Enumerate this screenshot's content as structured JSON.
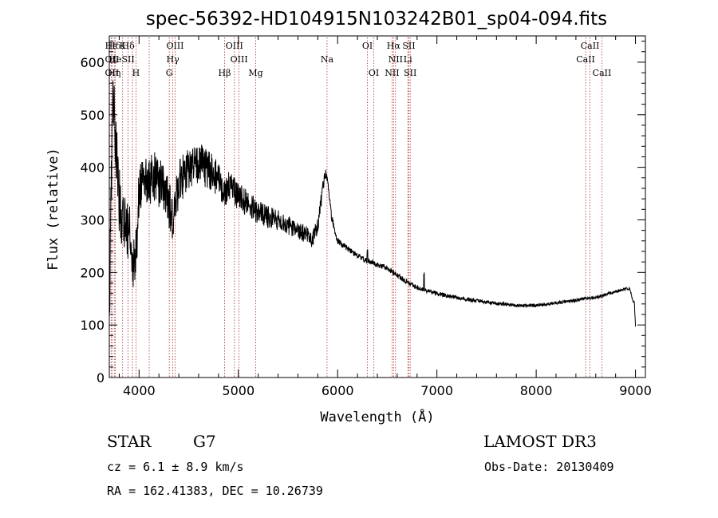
{
  "chart_data": {
    "type": "line",
    "title": "spec-56392-HD104915N103242B01_sp04-094.fits",
    "xlabel": "Wavelength (Å)",
    "ylabel": "Flux (relative)",
    "xlim": [
      3700,
      9100
    ],
    "ylim": [
      0,
      650
    ],
    "xticks": [
      4000,
      5000,
      6000,
      7000,
      8000,
      9000
    ],
    "yticks": [
      0,
      100,
      200,
      300,
      400,
      500,
      600
    ],
    "anchors": [
      [
        3700,
        120
      ],
      [
        3720,
        360
      ],
      [
        3740,
        540
      ],
      [
        3760,
        470
      ],
      [
        3780,
        410
      ],
      [
        3800,
        340
      ],
      [
        3820,
        300
      ],
      [
        3840,
        320
      ],
      [
        3860,
        290
      ],
      [
        3880,
        270
      ],
      [
        3900,
        300
      ],
      [
        3920,
        260
      ],
      [
        3940,
        220
      ],
      [
        3960,
        210
      ],
      [
        3980,
        270
      ],
      [
        4000,
        360
      ],
      [
        4050,
        380
      ],
      [
        4100,
        370
      ],
      [
        4150,
        385
      ],
      [
        4200,
        370
      ],
      [
        4250,
        360
      ],
      [
        4300,
        330
      ],
      [
        4340,
        300
      ],
      [
        4400,
        370
      ],
      [
        4450,
        385
      ],
      [
        4500,
        395
      ],
      [
        4550,
        405
      ],
      [
        4600,
        410
      ],
      [
        4700,
        395
      ],
      [
        4800,
        380
      ],
      [
        4860,
        355
      ],
      [
        4900,
        365
      ],
      [
        5000,
        345
      ],
      [
        5100,
        330
      ],
      [
        5200,
        315
      ],
      [
        5300,
        305
      ],
      [
        5400,
        300
      ],
      [
        5500,
        290
      ],
      [
        5600,
        280
      ],
      [
        5700,
        270
      ],
      [
        5750,
        262
      ],
      [
        5800,
        290
      ],
      [
        5850,
        360
      ],
      [
        5880,
        390
      ],
      [
        5900,
        370
      ],
      [
        5940,
        305
      ],
      [
        6000,
        260
      ],
      [
        6100,
        245
      ],
      [
        6200,
        232
      ],
      [
        6300,
        222
      ],
      [
        6400,
        215
      ],
      [
        6500,
        208
      ],
      [
        6600,
        195
      ],
      [
        6700,
        182
      ],
      [
        6800,
        172
      ],
      [
        6900,
        165
      ],
      [
        7000,
        160
      ],
      [
        7200,
        152
      ],
      [
        7400,
        146
      ],
      [
        7600,
        141
      ],
      [
        7800,
        137
      ],
      [
        8000,
        137
      ],
      [
        8200,
        142
      ],
      [
        8400,
        147
      ],
      [
        8500,
        150
      ],
      [
        8600,
        152
      ],
      [
        8700,
        158
      ],
      [
        8800,
        163
      ],
      [
        8900,
        168
      ],
      [
        8940,
        170
      ],
      [
        8970,
        150
      ],
      [
        8990,
        140
      ],
      [
        9000,
        100
      ]
    ],
    "noise": [
      [
        3700,
        70
      ],
      [
        4000,
        50
      ],
      [
        4300,
        45
      ],
      [
        4700,
        38
      ],
      [
        5000,
        26
      ],
      [
        5500,
        18
      ],
      [
        5800,
        16
      ],
      [
        6000,
        6
      ],
      [
        6500,
        5
      ],
      [
        7000,
        4
      ],
      [
        8000,
        3
      ],
      [
        9000,
        3
      ]
    ],
    "spikes": [
      {
        "x": 6300,
        "dy": 20
      },
      {
        "x": 6870,
        "dy": 30
      }
    ],
    "lines": [
      {
        "name": "Hε",
        "wave": 3718,
        "row": 0
      },
      {
        "name": "Hδ",
        "wave": 3750,
        "row": 0
      },
      {
        "name": "K",
        "wave": 3834,
        "row": 0
      },
      {
        "name": "Hδ",
        "wave": 3890,
        "row": 0
      },
      {
        "name": "OIII",
        "wave": 4363,
        "row": 0
      },
      {
        "name": "OIII",
        "wave": 4960,
        "row": 0
      },
      {
        "name": "OI",
        "wave": 6300,
        "row": 0
      },
      {
        "name": "Hα",
        "wave": 6563,
        "row": 0
      },
      {
        "name": "SII",
        "wave": 6717,
        "row": 0
      },
      {
        "name": "CaII",
        "wave": 8542,
        "row": 0
      },
      {
        "name": "OII",
        "wave": 3727,
        "row": 1
      },
      {
        "name": "He",
        "wave": 3760,
        "row": 1
      },
      {
        "name": "SII",
        "wave": 3890,
        "row": 1
      },
      {
        "name": "Hγ",
        "wave": 4340,
        "row": 1
      },
      {
        "name": "OIII",
        "wave": 5007,
        "row": 1
      },
      {
        "name": "Na",
        "wave": 5893,
        "row": 1
      },
      {
        "name": "NII",
        "wave": 6583,
        "row": 1
      },
      {
        "name": "Li",
        "wave": 6707,
        "row": 1
      },
      {
        "name": "CaII",
        "wave": 8498,
        "row": 1
      },
      {
        "name": "OII",
        "wave": 3727,
        "row": 2
      },
      {
        "name": "Hη",
        "wave": 3750,
        "row": 2
      },
      {
        "name": "H",
        "wave": 3969,
        "row": 2
      },
      {
        "name": "G",
        "wave": 4304,
        "row": 2
      },
      {
        "name": "Hβ",
        "wave": 4861,
        "row": 2
      },
      {
        "name": "Mg",
        "wave": 5175,
        "row": 2
      },
      {
        "name": "OI",
        "wave": 6364,
        "row": 2
      },
      {
        "name": "NII",
        "wave": 6548,
        "row": 2
      },
      {
        "name": "SII",
        "wave": 6731,
        "row": 2
      },
      {
        "name": "CaII",
        "wave": 8662,
        "row": 2
      }
    ],
    "marker_lines": [
      3718,
      3727,
      3750,
      3760,
      3834,
      3890,
      3934,
      3969,
      4102,
      4304,
      4340,
      4363,
      4861,
      4960,
      5007,
      5175,
      5893,
      6300,
      6364,
      6548,
      6563,
      6583,
      6707,
      6717,
      6731,
      8498,
      8542,
      8662
    ],
    "colors": {
      "spectrum": "#000000",
      "markers": "#b03030",
      "axes": "#000000"
    }
  },
  "info": {
    "obj_class": "STAR",
    "subclass": "G7",
    "survey": "LAMOST DR3",
    "redshift": "cz = 6.1 ± 8.9 km/s",
    "obs_date": "Obs-Date: 20130409",
    "coords": "RA = 162.41383, DEC =  10.26739"
  }
}
